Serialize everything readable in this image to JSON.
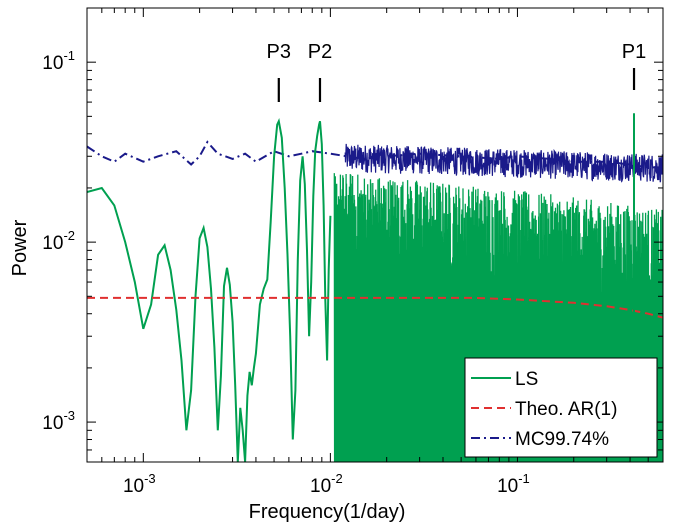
{
  "chart_data": {
    "type": "line",
    "title": "",
    "xlabel": "Frequency(1/day)",
    "ylabel": "Power",
    "xscale": "log",
    "yscale": "log",
    "xlim": [
      0.0005,
      0.6
    ],
    "ylim": [
      0.0006,
      0.2
    ],
    "x_ticks": [
      {
        "base": "10",
        "exp": "-3",
        "value": 0.001
      },
      {
        "base": "10",
        "exp": "-2",
        "value": 0.01
      },
      {
        "base": "10",
        "exp": "-1",
        "value": 0.1
      }
    ],
    "y_ticks": [
      {
        "base": "10",
        "exp": "-3",
        "value": 0.001
      },
      {
        "base": "10",
        "exp": "-2",
        "value": 0.01
      },
      {
        "base": "10",
        "exp": "-1",
        "value": 0.1
      }
    ],
    "grid": false,
    "legend_position": "bottom-right",
    "peaks": [
      {
        "label": "P3",
        "x": 0.0053
      },
      {
        "label": "P2",
        "x": 0.0088
      },
      {
        "label": "P1",
        "x": 0.42
      }
    ],
    "series": [
      {
        "name": "LS",
        "color": "#00a050",
        "style": "solid",
        "x": [
          0.0005,
          0.0006,
          0.0007,
          0.0008,
          0.0009,
          0.001,
          0.0011,
          0.0012,
          0.0013,
          0.0014,
          0.0015,
          0.0016,
          0.0017,
          0.0018,
          0.0019,
          0.002,
          0.0021,
          0.0022,
          0.0023,
          0.0024,
          0.0025,
          0.0026,
          0.0027,
          0.0028,
          0.0029,
          0.003,
          0.0031,
          0.0032,
          0.0033,
          0.0034,
          0.0035,
          0.0036,
          0.0037,
          0.0038,
          0.0039,
          0.004,
          0.0042,
          0.0044,
          0.0046,
          0.0048,
          0.005,
          0.0052,
          0.0053,
          0.0055,
          0.0057,
          0.0059,
          0.0061,
          0.0063,
          0.0065,
          0.0067,
          0.0069,
          0.0071,
          0.0073,
          0.0075,
          0.0077,
          0.0079,
          0.0081,
          0.0083,
          0.0085,
          0.0087,
          0.0088,
          0.009,
          0.0092,
          0.0094,
          0.0096,
          0.0098,
          0.01
        ],
        "y": [
          0.019,
          0.02,
          0.016,
          0.01,
          0.006,
          0.0033,
          0.0045,
          0.0085,
          0.0096,
          0.007,
          0.0042,
          0.0022,
          0.0009,
          0.0015,
          0.005,
          0.0105,
          0.012,
          0.0094,
          0.0055,
          0.0026,
          0.0009,
          0.0018,
          0.0057,
          0.0072,
          0.0058,
          0.0036,
          0.0016,
          0.0006,
          0.0012,
          0.0009,
          0.0006,
          0.0014,
          0.0019,
          0.0016,
          0.002,
          0.0024,
          0.0045,
          0.0055,
          0.0062,
          0.013,
          0.03,
          0.045,
          0.047,
          0.038,
          0.02,
          0.0085,
          0.003,
          0.0008,
          0.0015,
          0.008,
          0.022,
          0.03,
          0.021,
          0.009,
          0.003,
          0.006,
          0.018,
          0.032,
          0.039,
          0.045,
          0.047,
          0.035,
          0.016,
          0.0048,
          0.0022,
          0.007,
          0.014
        ]
      },
      {
        "name": "Theo. AR(1)",
        "color": "#e03030",
        "style": "dashed",
        "x": [
          0.0005,
          0.001,
          0.003,
          0.01,
          0.03,
          0.06,
          0.1,
          0.2,
          0.3,
          0.4,
          0.5,
          0.6
        ],
        "y": [
          0.0049,
          0.0049,
          0.0049,
          0.0049,
          0.0049,
          0.0049,
          0.0048,
          0.0046,
          0.0044,
          0.0042,
          0.004,
          0.0038
        ]
      },
      {
        "name": "MC99.74%",
        "color": "#1a1a8a",
        "style": "dashdot",
        "x": [
          0.0005,
          0.0006,
          0.0007,
          0.0008,
          0.001,
          0.0012,
          0.0015,
          0.0018,
          0.002,
          0.0022,
          0.0025,
          0.003,
          0.0035,
          0.004,
          0.005,
          0.006,
          0.007,
          0.008,
          0.01,
          0.015,
          0.02,
          0.03,
          0.05,
          0.08,
          0.1,
          0.15,
          0.2,
          0.3,
          0.4,
          0.5,
          0.6
        ],
        "y": [
          0.034,
          0.03,
          0.028,
          0.031,
          0.028,
          0.03,
          0.032,
          0.027,
          0.03,
          0.036,
          0.031,
          0.029,
          0.031,
          0.028,
          0.032,
          0.03,
          0.031,
          0.032,
          0.031,
          0.029,
          0.03,
          0.031,
          0.03,
          0.029,
          0.03,
          0.029,
          0.028,
          0.028,
          0.027,
          0.026,
          0.026
        ]
      }
    ]
  }
}
